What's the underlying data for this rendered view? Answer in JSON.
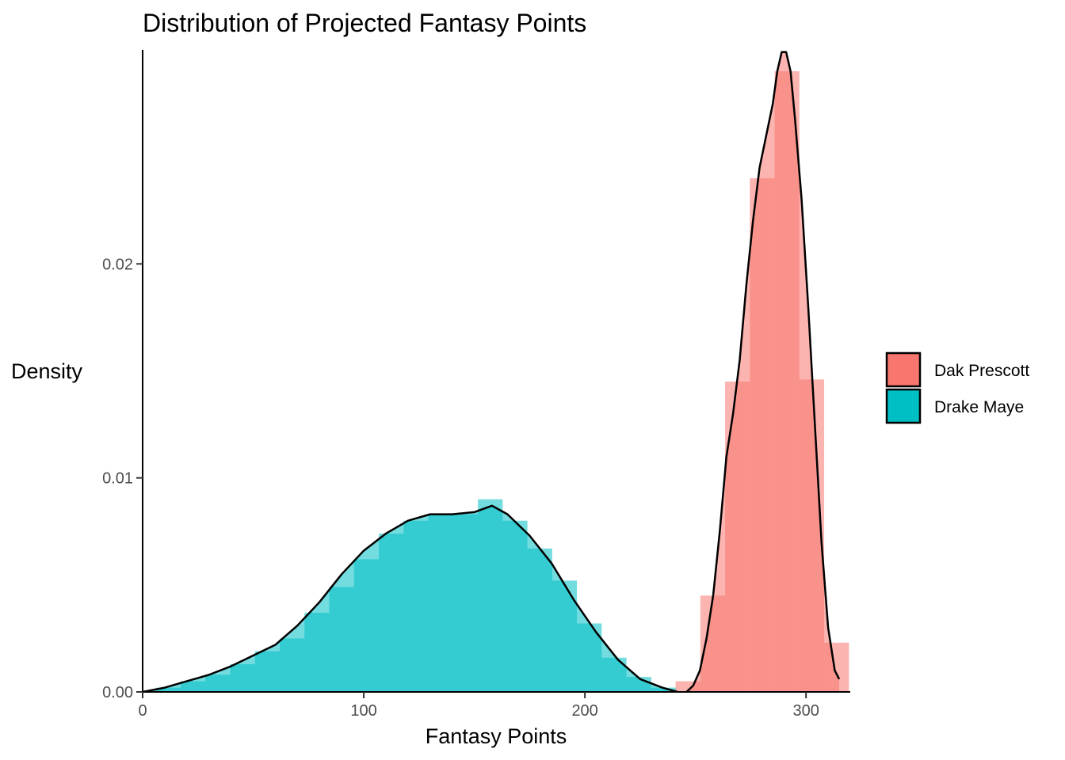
{
  "chart_data": {
    "type": "histogram",
    "title": "Distribution of Projected Fantasy Points",
    "xlabel": "Fantasy Points",
    "ylabel": "Density",
    "xlim": [
      0,
      320
    ],
    "ylim": [
      0,
      0.03
    ],
    "x_ticks": [
      0,
      100,
      200,
      300
    ],
    "x_tick_labels": [
      "0",
      "100",
      "200",
      "300"
    ],
    "y_ticks": [
      0.0,
      0.01,
      0.02
    ],
    "y_tick_labels": [
      "0.00",
      "0.01",
      "0.02"
    ],
    "bin_width": 11.2,
    "grid": false,
    "legend_position": "right",
    "series": [
      {
        "name": "Drake Maye",
        "color": "#00BFC4",
        "bins": [
          {
            "x0": 6.0,
            "x1": 17.2,
            "y": 0.0002
          },
          {
            "x0": 17.2,
            "x1": 28.4,
            "y": 0.0005
          },
          {
            "x0": 28.4,
            "x1": 39.6,
            "y": 0.0008
          },
          {
            "x0": 39.6,
            "x1": 50.8,
            "y": 0.0013
          },
          {
            "x0": 50.8,
            "x1": 62.0,
            "y": 0.0019
          },
          {
            "x0": 62.0,
            "x1": 73.2,
            "y": 0.0025
          },
          {
            "x0": 73.2,
            "x1": 84.4,
            "y": 0.0037
          },
          {
            "x0": 84.4,
            "x1": 95.6,
            "y": 0.0049
          },
          {
            "x0": 95.6,
            "x1": 106.8,
            "y": 0.0062
          },
          {
            "x0": 106.8,
            "x1": 118.0,
            "y": 0.0074
          },
          {
            "x0": 118.0,
            "x1": 129.2,
            "y": 0.008
          },
          {
            "x0": 129.2,
            "x1": 140.4,
            "y": 0.0083
          },
          {
            "x0": 140.4,
            "x1": 151.6,
            "y": 0.0083
          },
          {
            "x0": 151.6,
            "x1": 162.8,
            "y": 0.009
          },
          {
            "x0": 162.8,
            "x1": 174.0,
            "y": 0.008
          },
          {
            "x0": 174.0,
            "x1": 185.2,
            "y": 0.0067
          },
          {
            "x0": 185.2,
            "x1": 196.4,
            "y": 0.0052
          },
          {
            "x0": 196.4,
            "x1": 207.6,
            "y": 0.0032
          },
          {
            "x0": 207.6,
            "x1": 218.8,
            "y": 0.0016
          },
          {
            "x0": 218.8,
            "x1": 230.0,
            "y": 0.0007
          },
          {
            "x0": 230.0,
            "x1": 241.2,
            "y": 0.0002
          }
        ],
        "density": [
          [
            0,
            0.0
          ],
          [
            10,
            0.0002
          ],
          [
            20,
            0.0005
          ],
          [
            30,
            0.0008
          ],
          [
            40,
            0.0012
          ],
          [
            50,
            0.0017
          ],
          [
            60,
            0.0022
          ],
          [
            70,
            0.0031
          ],
          [
            80,
            0.0042
          ],
          [
            90,
            0.0055
          ],
          [
            100,
            0.0066
          ],
          [
            110,
            0.0074
          ],
          [
            120,
            0.008
          ],
          [
            130,
            0.0083
          ],
          [
            140,
            0.0083
          ],
          [
            150,
            0.0084
          ],
          [
            158,
            0.0087
          ],
          [
            165,
            0.0083
          ],
          [
            175,
            0.0073
          ],
          [
            185,
            0.006
          ],
          [
            195,
            0.0043
          ],
          [
            205,
            0.0028
          ],
          [
            215,
            0.0015
          ],
          [
            225,
            0.0006
          ],
          [
            235,
            0.0002
          ],
          [
            242,
            0.0
          ]
        ]
      },
      {
        "name": "Dak Prescott",
        "color": "#F8766D",
        "bins": [
          {
            "x0": 241.0,
            "x1": 252.2,
            "y": 0.0005
          },
          {
            "x0": 252.2,
            "x1": 263.4,
            "y": 0.0045
          },
          {
            "x0": 263.4,
            "x1": 274.6,
            "y": 0.0145
          },
          {
            "x0": 274.6,
            "x1": 285.8,
            "y": 0.024
          },
          {
            "x0": 285.8,
            "x1": 297.0,
            "y": 0.029
          },
          {
            "x0": 297.0,
            "x1": 308.2,
            "y": 0.0146
          },
          {
            "x0": 308.2,
            "x1": 319.4,
            "y": 0.0023
          }
        ],
        "density": [
          [
            246,
            0.0
          ],
          [
            249,
            0.0003
          ],
          [
            252,
            0.001
          ],
          [
            255,
            0.0025
          ],
          [
            258,
            0.0045
          ],
          [
            261,
            0.0075
          ],
          [
            264,
            0.011
          ],
          [
            267,
            0.013
          ],
          [
            270,
            0.0155
          ],
          [
            273,
            0.019
          ],
          [
            276,
            0.022
          ],
          [
            279,
            0.0245
          ],
          [
            282,
            0.026
          ],
          [
            285,
            0.0275
          ],
          [
            287,
            0.029
          ],
          [
            289,
            0.0299
          ],
          [
            291,
            0.0299
          ],
          [
            293,
            0.029
          ],
          [
            295,
            0.0268
          ],
          [
            298,
            0.023
          ],
          [
            301,
            0.018
          ],
          [
            304,
            0.0125
          ],
          [
            307,
            0.007
          ],
          [
            310,
            0.003
          ],
          [
            313,
            0.001
          ],
          [
            315,
            0.0006
          ]
        ]
      }
    ]
  }
}
